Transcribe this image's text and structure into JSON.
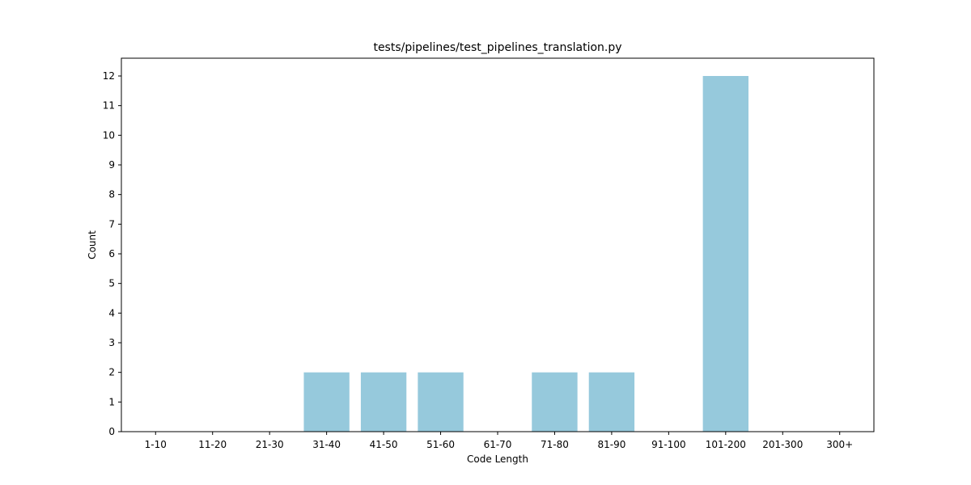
{
  "chart_data": {
    "type": "bar",
    "title": "tests/pipelines/test_pipelines_translation.py",
    "xlabel": "Code Length",
    "ylabel": "Count",
    "categories": [
      "1-10",
      "11-20",
      "21-30",
      "31-40",
      "41-50",
      "51-60",
      "61-70",
      "71-80",
      "81-90",
      "91-100",
      "101-200",
      "201-300",
      "300+"
    ],
    "values": [
      0,
      0,
      0,
      2,
      2,
      2,
      0,
      2,
      2,
      0,
      12,
      0,
      0
    ],
    "ylim": [
      0,
      12.6
    ],
    "yticks": [
      0,
      1,
      2,
      3,
      4,
      5,
      6,
      7,
      8,
      9,
      10,
      11,
      12
    ],
    "bar_color": "#96c9dc",
    "grid": false,
    "legend": "none"
  }
}
